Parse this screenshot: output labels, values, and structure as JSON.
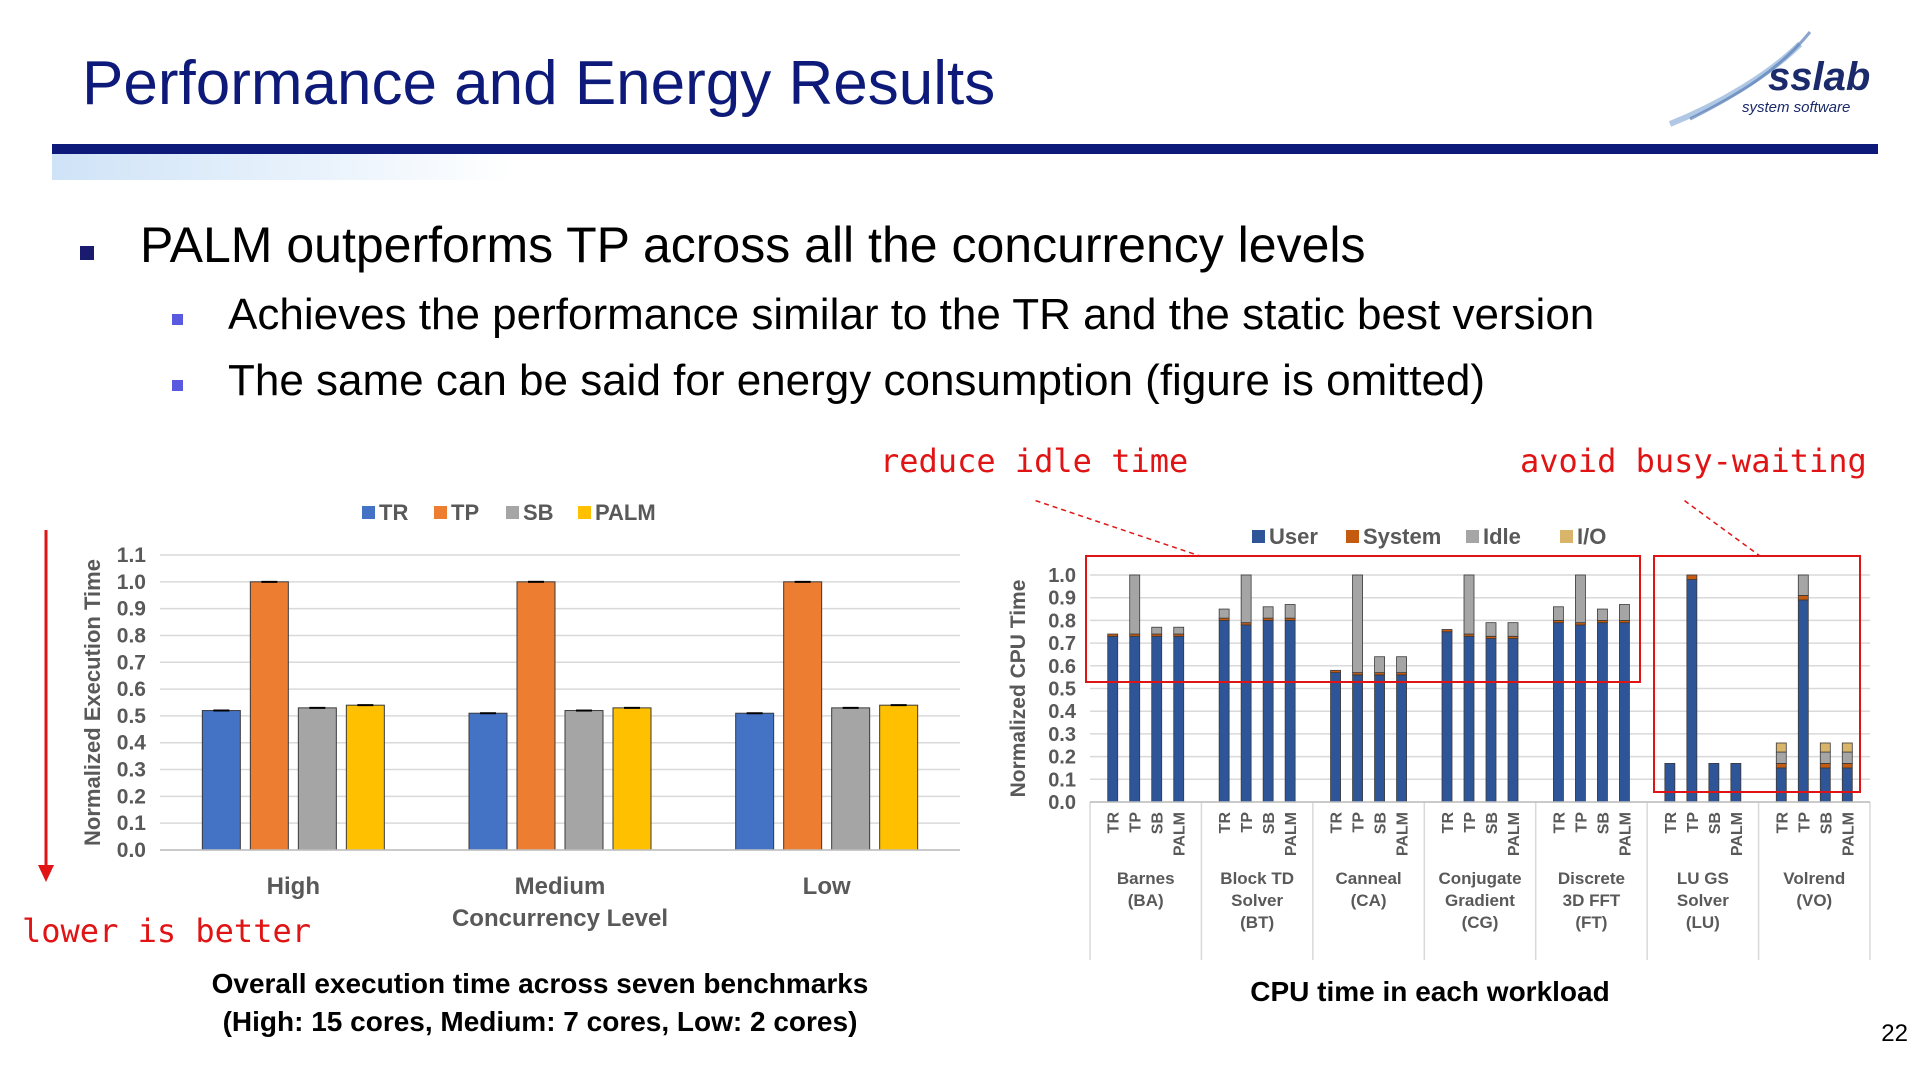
{
  "slide": {
    "title": "Performance and Energy Results",
    "page_number": "22",
    "logo": {
      "text": "sslab",
      "subtext": "system software"
    }
  },
  "bullets": {
    "main": "PALM outperforms TP across all the concurrency levels",
    "sub1": "Achieves the performance similar to the TR and the static best version",
    "sub2": "The same can be said for energy consumption (figure is omitted)"
  },
  "annotations": {
    "reduce_idle": "reduce idle time",
    "avoid_busy": "avoid busy-waiting",
    "lower_better": "lower is better"
  },
  "captions": {
    "left_line1": "Overall execution time across seven benchmarks",
    "left_line2": "(High: 15 cores, Medium: 7 cores, Low: 2 cores)",
    "right": "CPU time in each workload"
  },
  "colors": {
    "title": "#0d1a7a",
    "TR": "#4472c4",
    "TP": "#ed7d31",
    "SB": "#a5a5a5",
    "PALM": "#ffc000",
    "annotation": "#e01414"
  },
  "chart_data": [
    {
      "type": "bar",
      "categories": [
        "High",
        "Medium",
        "Low"
      ],
      "series": [
        {
          "name": "TR",
          "values": [
            0.52,
            0.51,
            0.51
          ]
        },
        {
          "name": "TP",
          "values": [
            1.0,
            1.0,
            1.0
          ]
        },
        {
          "name": "SB",
          "values": [
            0.53,
            0.52,
            0.53
          ]
        },
        {
          "name": "PALM",
          "values": [
            0.54,
            0.53,
            0.54
          ]
        }
      ],
      "xlabel": "Concurrency Level",
      "ylabel": "Normalized Execution Time",
      "ylim": [
        0,
        1.1
      ],
      "yticks": [
        "0.0",
        "0.1",
        "0.2",
        "0.3",
        "0.4",
        "0.5",
        "0.6",
        "0.7",
        "0.8",
        "0.9",
        "1.0",
        "1.1"
      ],
      "legend": "top",
      "grid": true
    },
    {
      "type": "bar",
      "stacked": true,
      "stack_names": [
        "User",
        "System",
        "Idle",
        "I/O"
      ],
      "bar_labels": [
        "TR",
        "TP",
        "SB",
        "PALM"
      ],
      "groups": [
        {
          "label": [
            "Barnes",
            "(BA)"
          ],
          "bars": [
            [
              0.73,
              0.01,
              0,
              0
            ],
            [
              0.73,
              0.01,
              0.26,
              0
            ],
            [
              0.73,
              0.01,
              0.03,
              0
            ],
            [
              0.73,
              0.01,
              0.03,
              0
            ]
          ]
        },
        {
          "label": [
            "Block TD",
            "Solver",
            "(BT)"
          ],
          "bars": [
            [
              0.8,
              0.01,
              0.04,
              0
            ],
            [
              0.78,
              0.01,
              0.21,
              0
            ],
            [
              0.8,
              0.01,
              0.05,
              0
            ],
            [
              0.8,
              0.01,
              0.06,
              0
            ]
          ]
        },
        {
          "label": [
            "Canneal",
            "(CA)"
          ],
          "bars": [
            [
              0.57,
              0.01,
              0,
              0
            ],
            [
              0.56,
              0.01,
              0.43,
              0
            ],
            [
              0.56,
              0.01,
              0.07,
              0
            ],
            [
              0.56,
              0.01,
              0.07,
              0
            ]
          ]
        },
        {
          "label": [
            "Conjugate",
            "Gradient",
            "(CG)"
          ],
          "bars": [
            [
              0.75,
              0.01,
              0,
              0
            ],
            [
              0.73,
              0.01,
              0.26,
              0
            ],
            [
              0.72,
              0.01,
              0.06,
              0
            ],
            [
              0.72,
              0.01,
              0.06,
              0
            ]
          ]
        },
        {
          "label": [
            "Discrete",
            "3D FFT",
            "(FT)"
          ],
          "bars": [
            [
              0.79,
              0.01,
              0.06,
              0
            ],
            [
              0.78,
              0.01,
              0.21,
              0
            ],
            [
              0.79,
              0.01,
              0.05,
              0
            ],
            [
              0.79,
              0.01,
              0.07,
              0
            ]
          ]
        },
        {
          "label": [
            "LU GS",
            "Solver",
            "(LU)"
          ],
          "bars": [
            [
              0.17,
              0,
              0,
              0
            ],
            [
              0.98,
              0.02,
              0,
              0
            ],
            [
              0.17,
              0,
              0,
              0
            ],
            [
              0.17,
              0,
              0,
              0
            ]
          ]
        },
        {
          "label": [
            "Volrend",
            "(VO)"
          ],
          "bars": [
            [
              0.15,
              0.02,
              0.05,
              0.04
            ],
            [
              0.89,
              0.02,
              0.09,
              0
            ],
            [
              0.15,
              0.02,
              0.05,
              0.04
            ],
            [
              0.15,
              0.02,
              0.05,
              0.04
            ]
          ]
        }
      ],
      "ylabel": "Normalized CPU Time",
      "ylim": [
        0,
        1.0
      ],
      "yticks": [
        "0.0",
        "0.1",
        "0.2",
        "0.3",
        "0.4",
        "0.5",
        "0.6",
        "0.7",
        "0.8",
        "0.9",
        "1.0"
      ],
      "legend": "top",
      "grid": true
    }
  ]
}
